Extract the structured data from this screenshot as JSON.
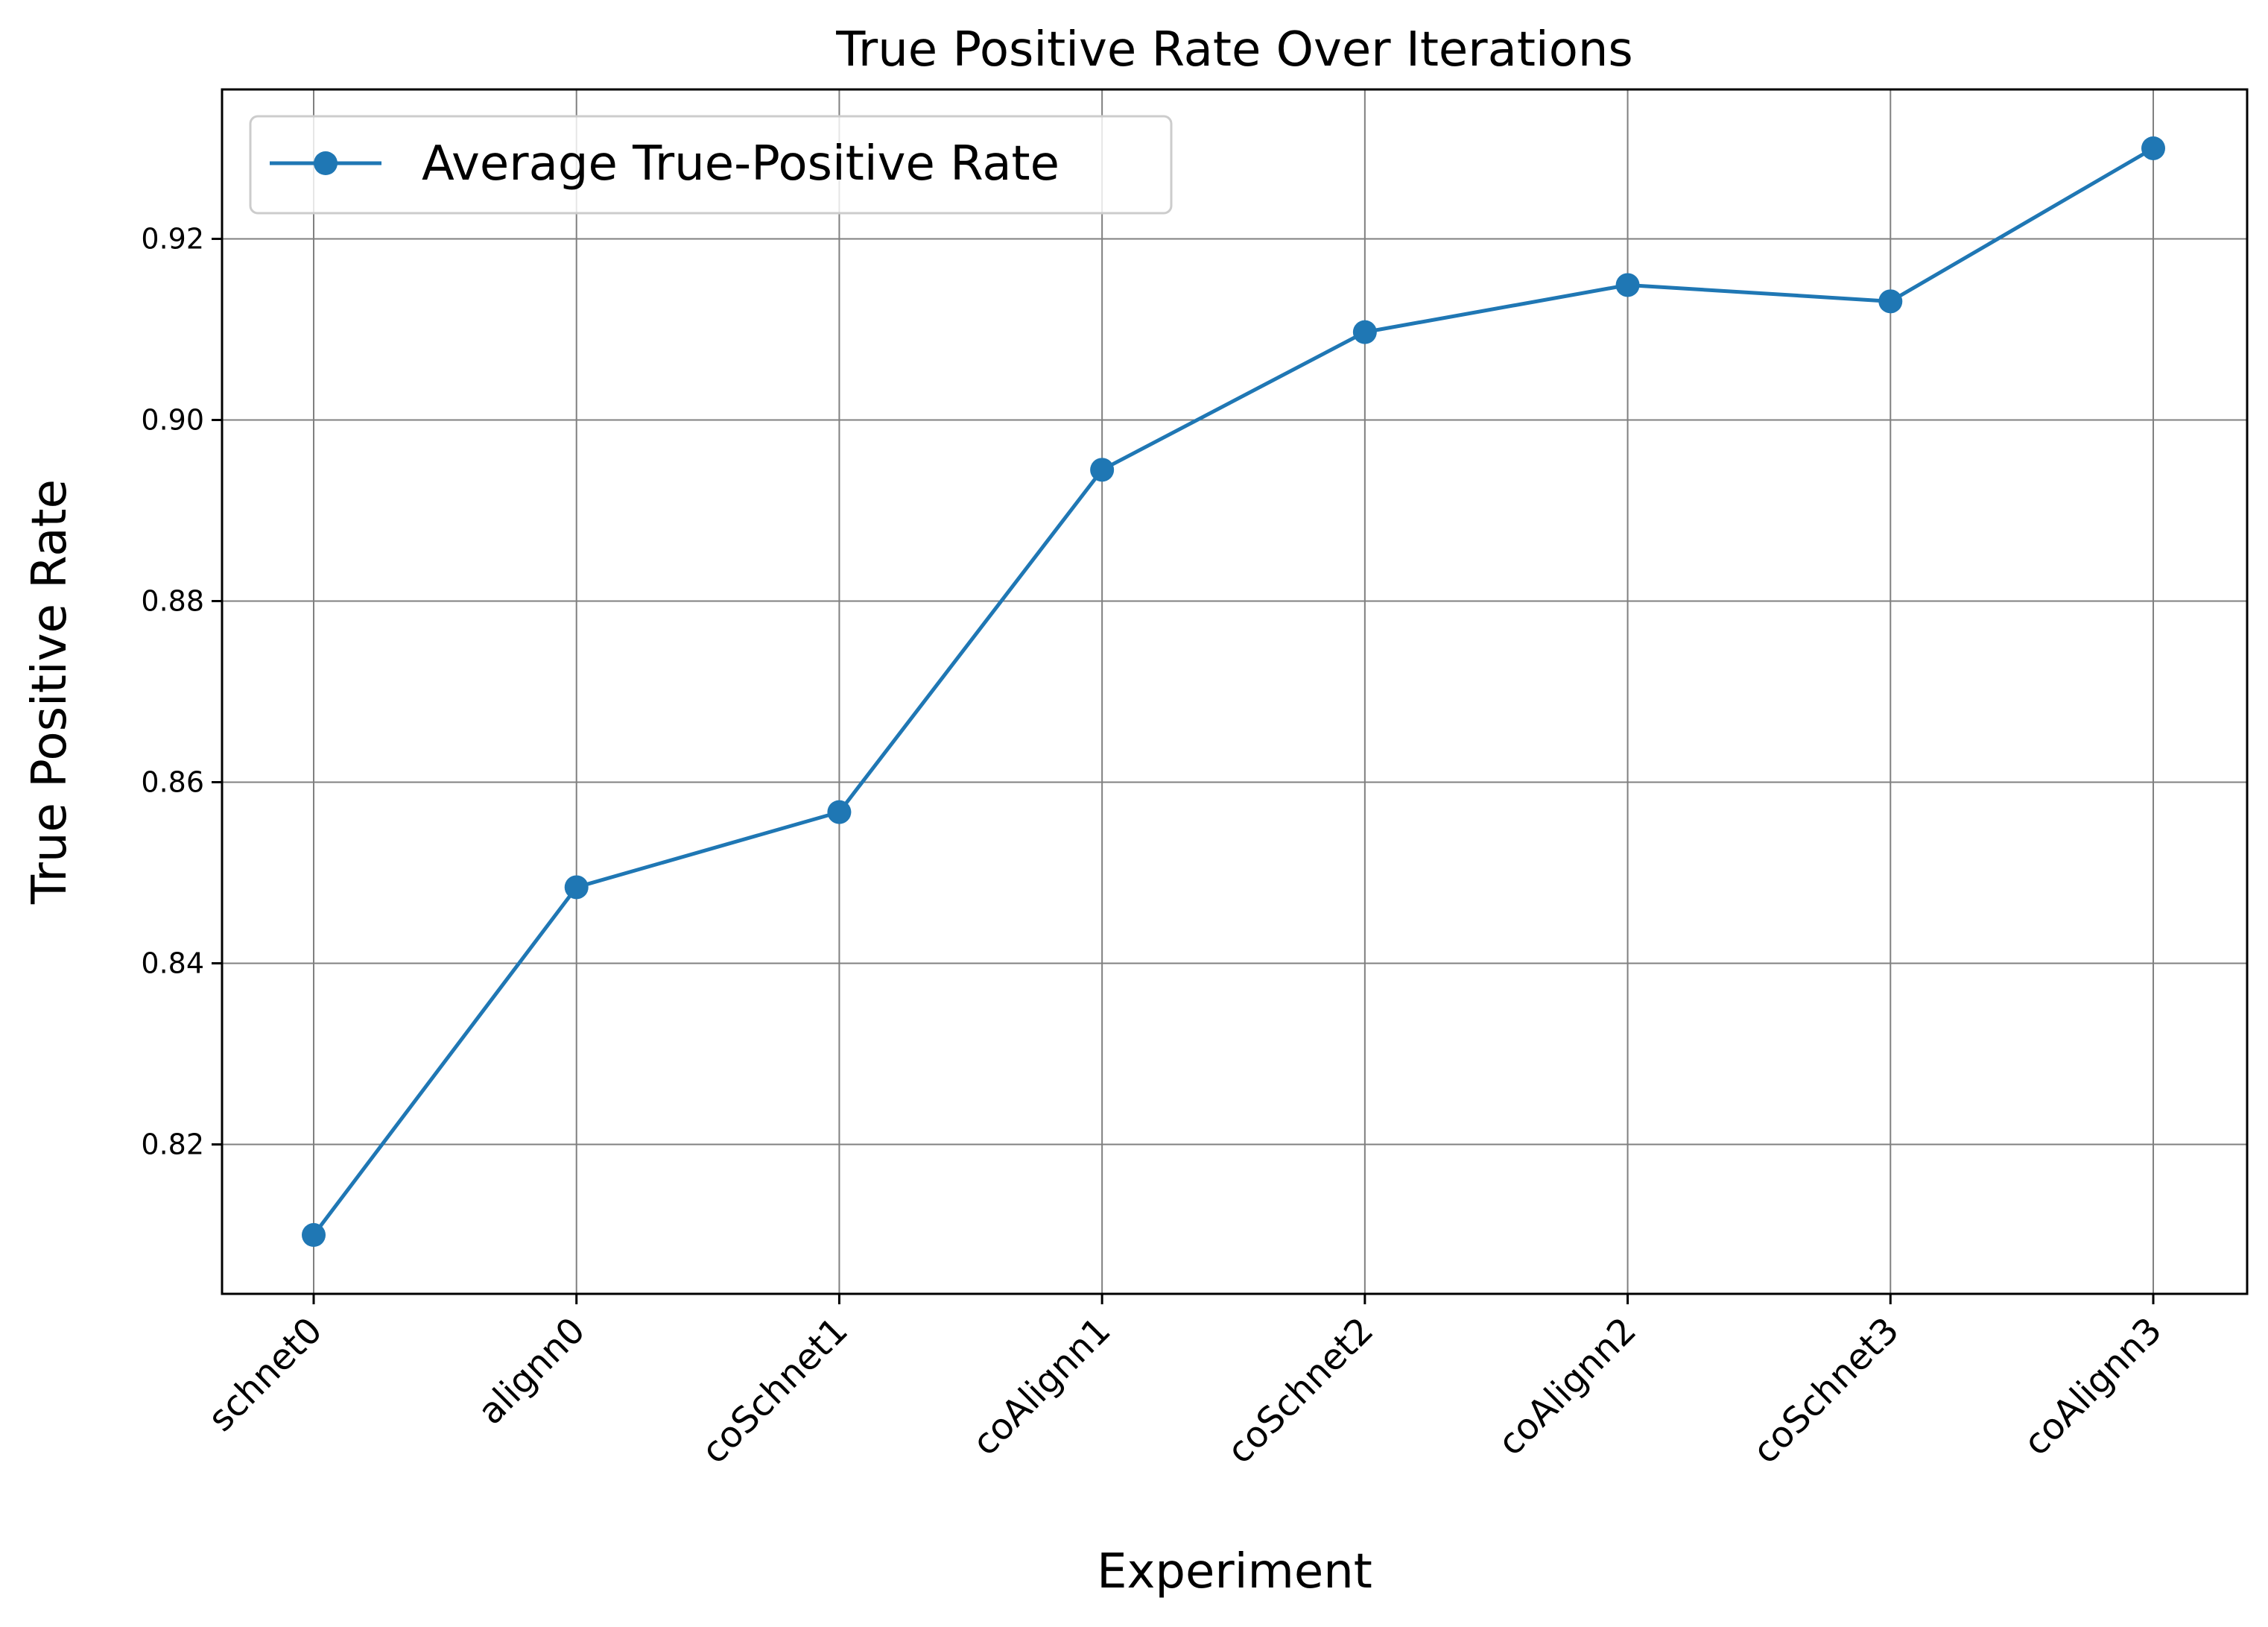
{
  "chart_data": {
    "type": "line",
    "title": "True Positive Rate Over Iterations",
    "xlabel": "Experiment",
    "ylabel": "True Positive Rate",
    "categories": [
      "schnet0",
      "alignn0",
      "coSchnet1",
      "coAlignn1",
      "coSchnet2",
      "coAlignn2",
      "coSchnet3",
      "coAlignn3"
    ],
    "series": [
      {
        "name": "Average True-Positive Rate",
        "values": [
          0.81,
          0.8484,
          0.8567,
          0.8945,
          0.9097,
          0.9149,
          0.9131,
          0.93
        ],
        "color": "#1f77b4",
        "marker": "circle"
      }
    ],
    "yticks": [
      "0.82",
      "0.84",
      "0.86",
      "0.88",
      "0.90",
      "0.92"
    ],
    "ylim": [
      0.8035,
      0.9365
    ],
    "grid": true,
    "legend_position": "top-left"
  }
}
